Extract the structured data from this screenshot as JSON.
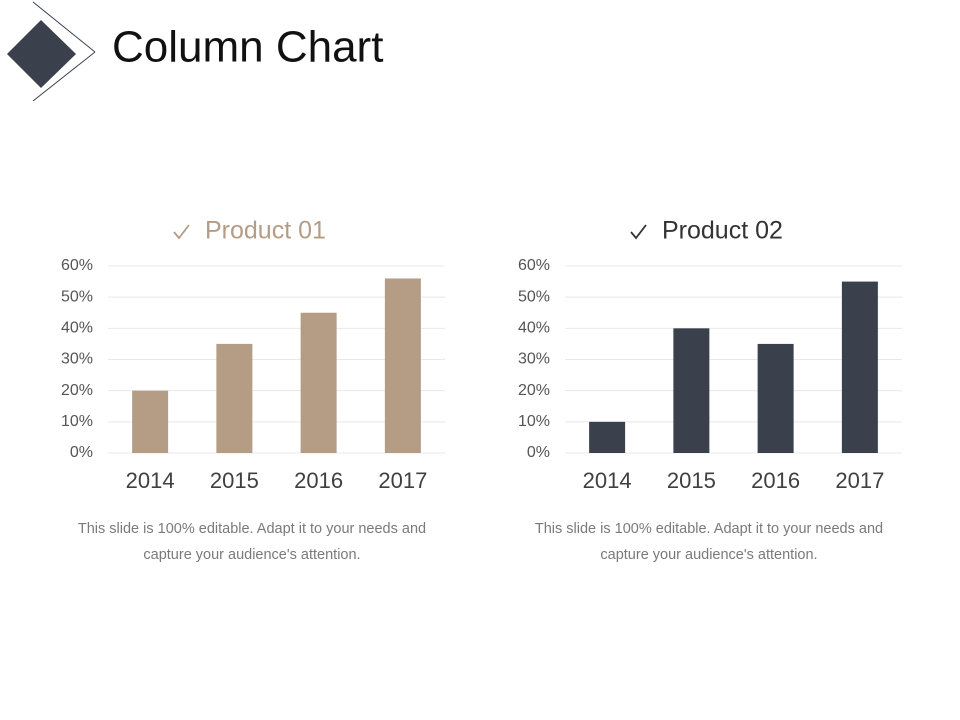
{
  "title": "Column Chart",
  "chart_data": [
    {
      "type": "bar",
      "title": "Product 01",
      "categories": [
        "2014",
        "2015",
        "2016",
        "2017"
      ],
      "values": [
        20,
        35,
        45,
        56
      ],
      "color": "#b49c85",
      "ylim": [
        0,
        60
      ],
      "yticks": [
        {
          "value": 0,
          "label": "0%"
        },
        {
          "value": 10,
          "label": "10%"
        },
        {
          "value": 20,
          "label": "20%"
        },
        {
          "value": 30,
          "label": "30%"
        },
        {
          "value": 40,
          "label": "40%"
        },
        {
          "value": 50,
          "label": "50%"
        },
        {
          "value": 60,
          "label": "60%"
        }
      ],
      "grid": true,
      "caption": "This slide is 100% editable. Adapt it to your needs and capture your audience's attention."
    },
    {
      "type": "bar",
      "title": "Product 02",
      "categories": [
        "2014",
        "2015",
        "2016",
        "2017"
      ],
      "values": [
        10,
        40,
        35,
        55
      ],
      "color": "#3b404d",
      "ylim": [
        0,
        60
      ],
      "yticks": [
        {
          "value": 0,
          "label": "0%"
        },
        {
          "value": 10,
          "label": "10%"
        },
        {
          "value": 20,
          "label": "20%"
        },
        {
          "value": 30,
          "label": "30%"
        },
        {
          "value": 40,
          "label": "40%"
        },
        {
          "value": 50,
          "label": "50%"
        },
        {
          "value": 60,
          "label": "60%"
        }
      ],
      "grid": true,
      "caption": "This slide is 100% editable. Adapt it to your needs and capture your audience's attention."
    }
  ]
}
